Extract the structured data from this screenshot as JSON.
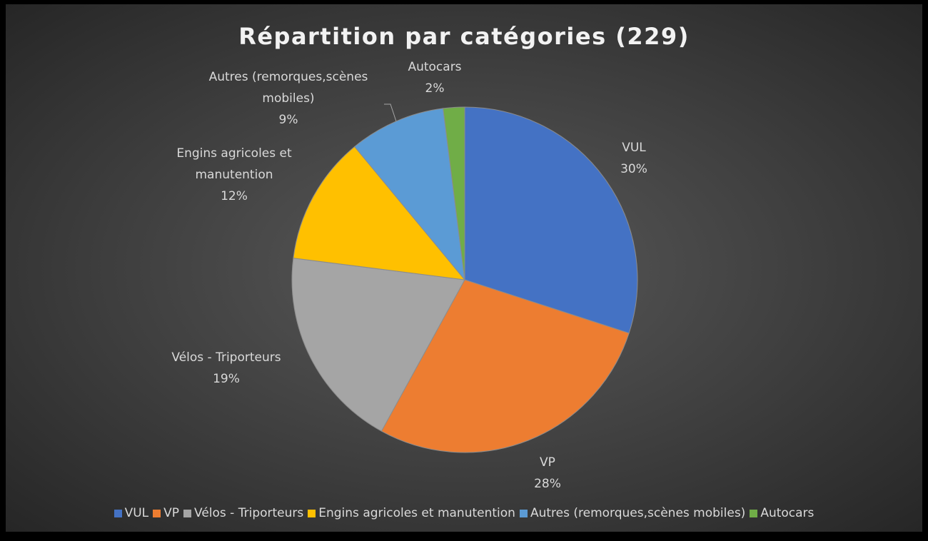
{
  "chart_data": {
    "type": "pie",
    "title": "Répartition par catégories (229)",
    "categories": [
      "VUL",
      "VP",
      "Vélos - Triporteurs",
      "Engins agricoles et manutention",
      "Autres (remorques,scènes mobiles)",
      "Autocars"
    ],
    "values": [
      30,
      28,
      19,
      12,
      9,
      2
    ],
    "value_labels": [
      "30%",
      "28%",
      "19%",
      "12%",
      "9%",
      "2%"
    ],
    "colors": [
      "#4472c4",
      "#ed7d31",
      "#a5a5a5",
      "#ffc000",
      "#5b9bd5",
      "#70ad47"
    ],
    "legend": "bottom"
  }
}
